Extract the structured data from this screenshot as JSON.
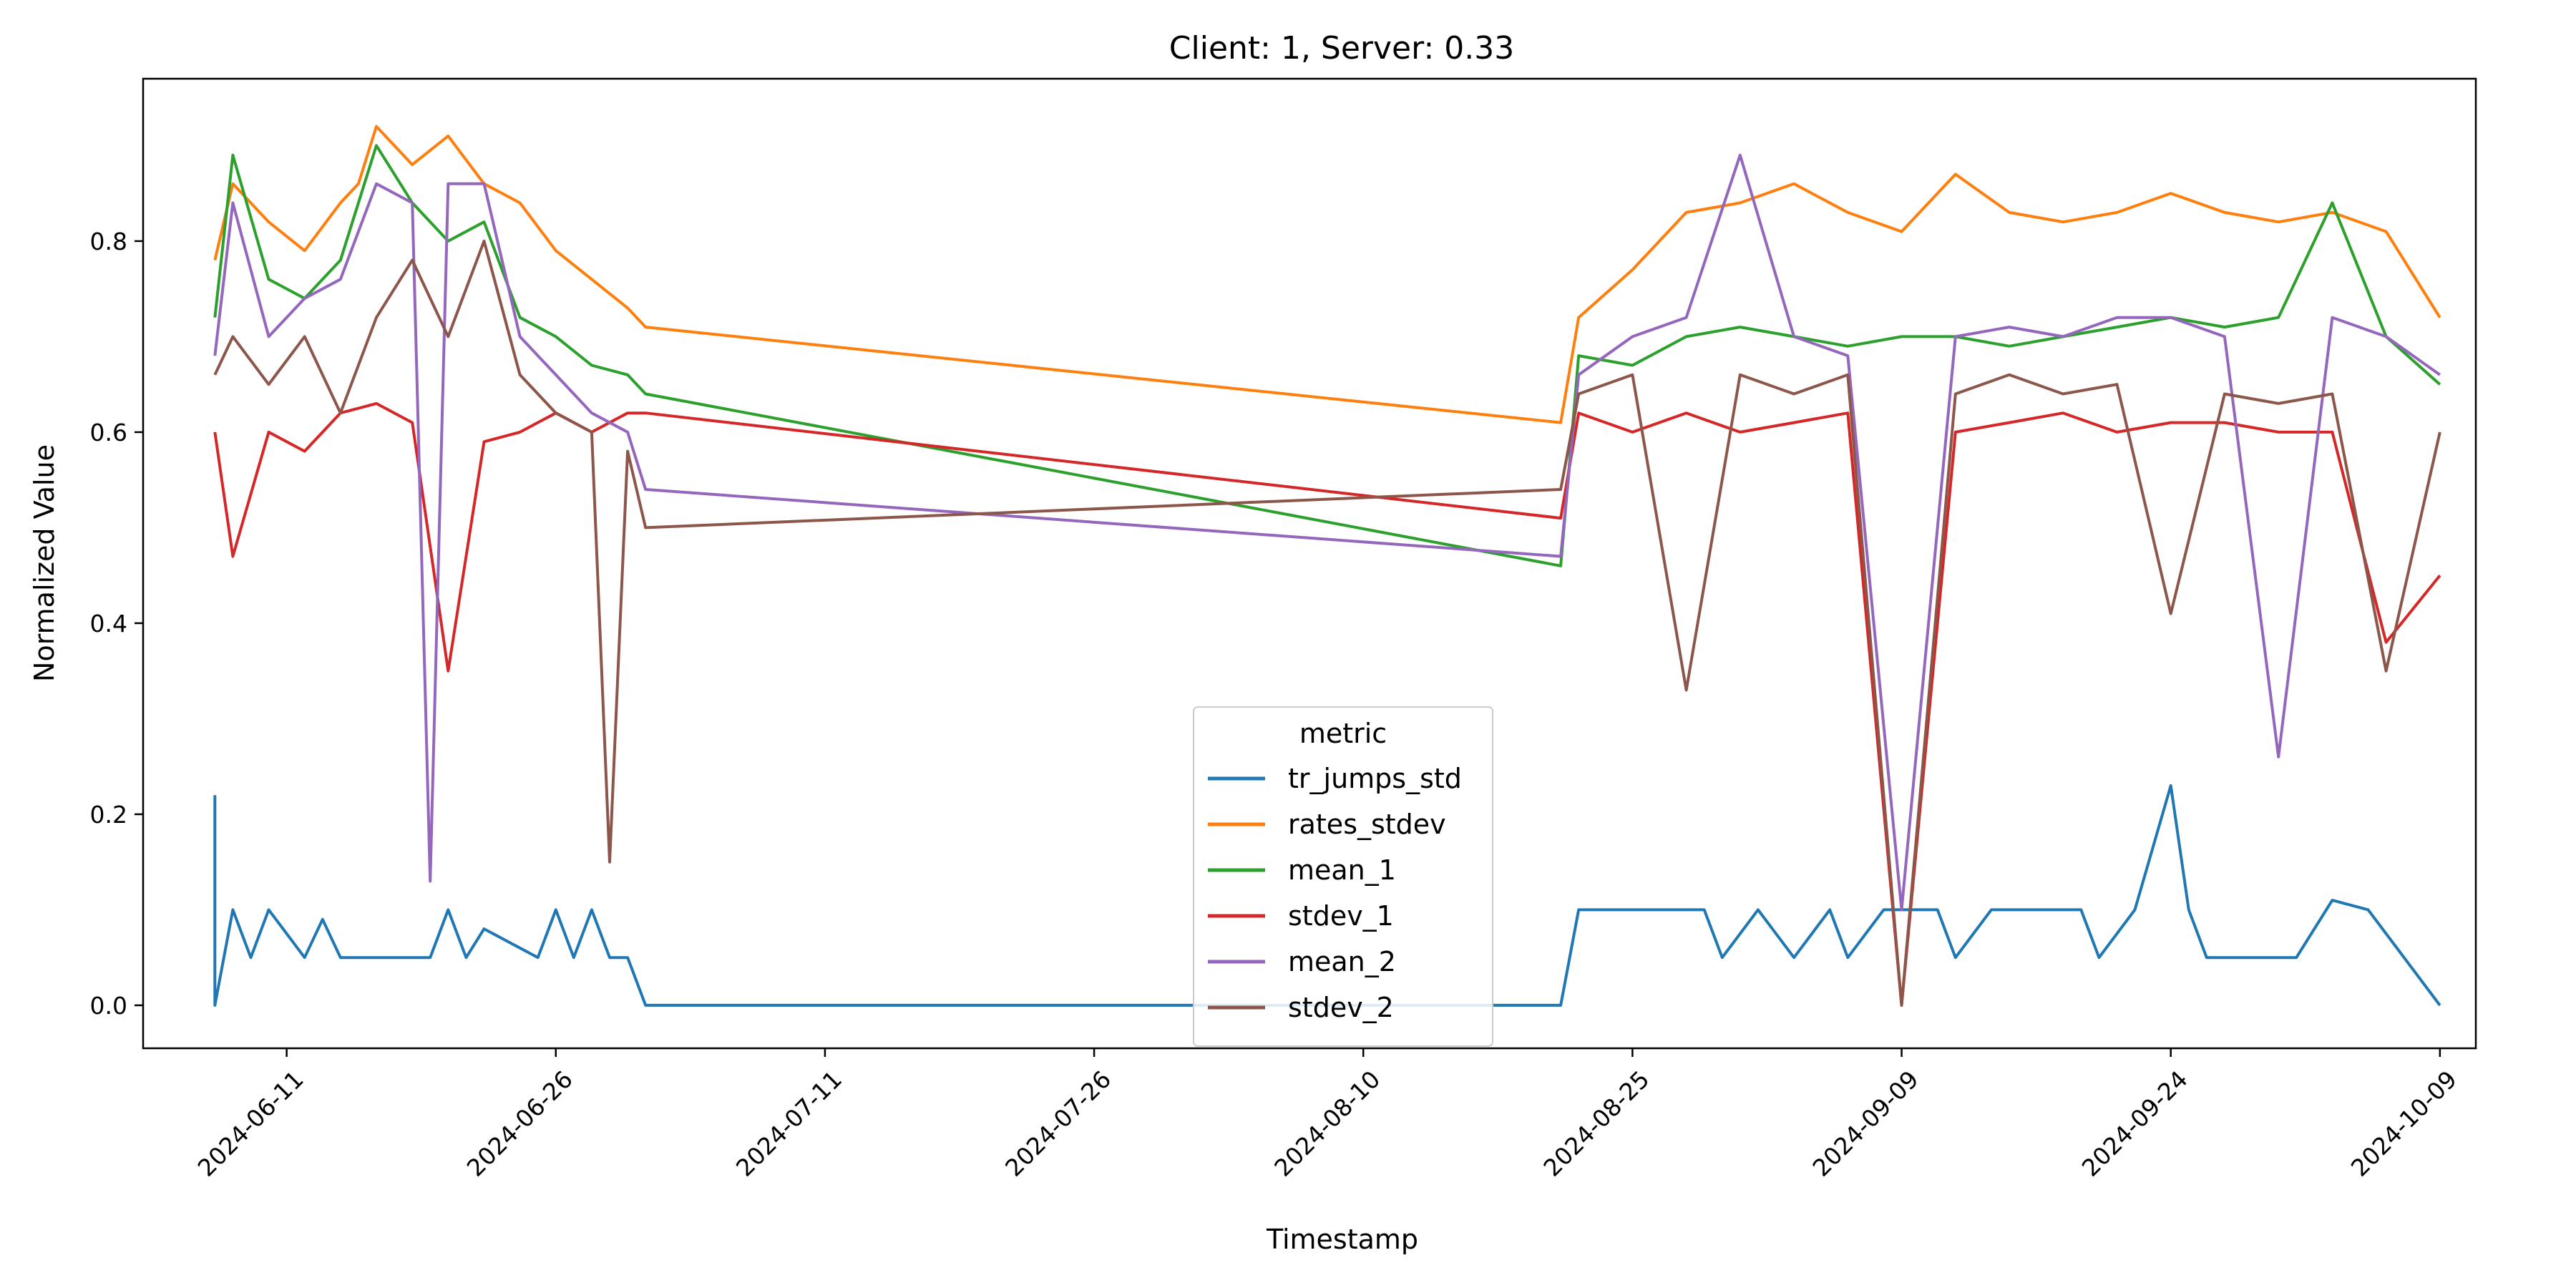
{
  "chart_data": {
    "type": "line",
    "title": "Client: 1, Server: 0.33",
    "xlabel": "Timestamp",
    "ylabel": "Normalized Value",
    "xlim": [
      "2024-06-03",
      "2024-10-11"
    ],
    "ylim": [
      -0.045,
      0.97
    ],
    "x_ticks": [
      "2024-06-11",
      "2024-06-26",
      "2024-07-11",
      "2024-07-26",
      "2024-08-10",
      "2024-08-25",
      "2024-09-09",
      "2024-09-24",
      "2024-10-09"
    ],
    "y_ticks": [
      "0.0",
      "0.2",
      "0.4",
      "0.6",
      "0.8"
    ],
    "grid": false,
    "legend": {
      "title": "metric",
      "placement": "lower-center"
    },
    "series": [
      {
        "name": "tr_jumps_std",
        "color": "#1f77b4",
        "x": [
          "2024-06-07",
          "2024-06-07",
          "2024-06-08",
          "2024-06-09",
          "2024-06-10",
          "2024-06-12",
          "2024-06-13",
          "2024-06-14",
          "2024-06-19",
          "2024-06-20",
          "2024-06-21",
          "2024-06-22",
          "2024-06-25",
          "2024-06-26",
          "2024-06-27",
          "2024-06-28",
          "2024-06-29",
          "2024-06-30",
          "2024-07-01",
          "2024-08-21",
          "2024-08-22",
          "2024-08-28",
          "2024-08-29",
          "2024-08-30",
          "2024-09-01",
          "2024-09-03",
          "2024-09-05",
          "2024-09-06",
          "2024-09-08",
          "2024-09-11",
          "2024-09-12",
          "2024-09-14",
          "2024-09-17",
          "2024-09-19",
          "2024-09-20",
          "2024-09-22",
          "2024-09-24",
          "2024-09-25",
          "2024-09-26",
          "2024-09-28",
          "2024-10-01",
          "2024-10-03",
          "2024-10-05",
          "2024-10-07",
          "2024-10-09"
        ],
        "values": [
          0.22,
          0.0,
          0.1,
          0.05,
          0.1,
          0.05,
          0.09,
          0.05,
          0.05,
          0.1,
          0.05,
          0.08,
          0.05,
          0.1,
          0.05,
          0.1,
          0.05,
          0.05,
          0.0,
          0.0,
          0.1,
          0.1,
          0.1,
          0.05,
          0.1,
          0.05,
          0.1,
          0.05,
          0.1,
          0.1,
          0.05,
          0.1,
          0.1,
          0.1,
          0.05,
          0.1,
          0.23,
          0.1,
          0.05,
          0.05,
          0.05,
          0.11,
          0.1,
          0.05,
          0.0
        ]
      },
      {
        "name": "rates_stdev",
        "color": "#ff7f0e",
        "x": [
          "2024-06-07",
          "2024-06-08",
          "2024-06-10",
          "2024-06-12",
          "2024-06-14",
          "2024-06-15",
          "2024-06-16",
          "2024-06-18",
          "2024-06-20",
          "2024-06-22",
          "2024-06-24",
          "2024-06-26",
          "2024-06-28",
          "2024-06-30",
          "2024-07-01",
          "2024-08-21",
          "2024-08-22",
          "2024-08-25",
          "2024-08-28",
          "2024-08-31",
          "2024-09-03",
          "2024-09-06",
          "2024-09-09",
          "2024-09-12",
          "2024-09-15",
          "2024-09-18",
          "2024-09-21",
          "2024-09-24",
          "2024-09-27",
          "2024-09-30",
          "2024-10-03",
          "2024-10-06",
          "2024-10-09"
        ],
        "values": [
          0.78,
          0.86,
          0.82,
          0.79,
          0.84,
          0.86,
          0.92,
          0.88,
          0.91,
          0.86,
          0.84,
          0.79,
          0.76,
          0.73,
          0.71,
          0.61,
          0.72,
          0.77,
          0.83,
          0.84,
          0.86,
          0.83,
          0.81,
          0.87,
          0.83,
          0.82,
          0.83,
          0.85,
          0.83,
          0.82,
          0.83,
          0.81,
          0.72
        ]
      },
      {
        "name": "mean_1",
        "color": "#2ca02c",
        "x": [
          "2024-06-07",
          "2024-06-08",
          "2024-06-10",
          "2024-06-12",
          "2024-06-14",
          "2024-06-16",
          "2024-06-18",
          "2024-06-20",
          "2024-06-22",
          "2024-06-24",
          "2024-06-26",
          "2024-06-28",
          "2024-06-30",
          "2024-07-01",
          "2024-08-21",
          "2024-08-22",
          "2024-08-25",
          "2024-08-28",
          "2024-08-31",
          "2024-09-03",
          "2024-09-06",
          "2024-09-09",
          "2024-09-12",
          "2024-09-15",
          "2024-09-18",
          "2024-09-21",
          "2024-09-24",
          "2024-09-27",
          "2024-09-30",
          "2024-10-03",
          "2024-10-06",
          "2024-10-09"
        ],
        "values": [
          0.72,
          0.89,
          0.76,
          0.74,
          0.78,
          0.9,
          0.84,
          0.8,
          0.82,
          0.72,
          0.7,
          0.67,
          0.66,
          0.64,
          0.46,
          0.68,
          0.67,
          0.7,
          0.71,
          0.7,
          0.69,
          0.7,
          0.7,
          0.69,
          0.7,
          0.71,
          0.72,
          0.71,
          0.72,
          0.84,
          0.7,
          0.65
        ]
      },
      {
        "name": "stdev_1",
        "color": "#d62728",
        "x": [
          "2024-06-07",
          "2024-06-08",
          "2024-06-10",
          "2024-06-12",
          "2024-06-14",
          "2024-06-16",
          "2024-06-18",
          "2024-06-20",
          "2024-06-22",
          "2024-06-24",
          "2024-06-26",
          "2024-06-28",
          "2024-06-30",
          "2024-07-01",
          "2024-08-21",
          "2024-08-22",
          "2024-08-25",
          "2024-08-28",
          "2024-08-31",
          "2024-09-03",
          "2024-09-06",
          "2024-09-09",
          "2024-09-12",
          "2024-09-15",
          "2024-09-18",
          "2024-09-21",
          "2024-09-24",
          "2024-09-27",
          "2024-09-30",
          "2024-10-03",
          "2024-10-06",
          "2024-10-09"
        ],
        "values": [
          0.6,
          0.47,
          0.6,
          0.58,
          0.62,
          0.63,
          0.61,
          0.35,
          0.59,
          0.6,
          0.62,
          0.6,
          0.62,
          0.62,
          0.51,
          0.62,
          0.6,
          0.62,
          0.6,
          0.61,
          0.62,
          0.0,
          0.6,
          0.61,
          0.62,
          0.6,
          0.61,
          0.61,
          0.6,
          0.6,
          0.38,
          0.45
        ]
      },
      {
        "name": "mean_2",
        "color": "#9467bd",
        "x": [
          "2024-06-07",
          "2024-06-08",
          "2024-06-10",
          "2024-06-12",
          "2024-06-14",
          "2024-06-16",
          "2024-06-18",
          "2024-06-19",
          "2024-06-20",
          "2024-06-22",
          "2024-06-24",
          "2024-06-26",
          "2024-06-28",
          "2024-06-30",
          "2024-07-01",
          "2024-08-21",
          "2024-08-22",
          "2024-08-25",
          "2024-08-28",
          "2024-08-31",
          "2024-09-03",
          "2024-09-06",
          "2024-09-09",
          "2024-09-12",
          "2024-09-15",
          "2024-09-18",
          "2024-09-21",
          "2024-09-24",
          "2024-09-27",
          "2024-09-30",
          "2024-10-03",
          "2024-10-06",
          "2024-10-09"
        ],
        "values": [
          0.68,
          0.84,
          0.7,
          0.74,
          0.76,
          0.86,
          0.84,
          0.13,
          0.86,
          0.86,
          0.7,
          0.66,
          0.62,
          0.6,
          0.54,
          0.47,
          0.66,
          0.7,
          0.72,
          0.89,
          0.7,
          0.68,
          0.1,
          0.7,
          0.71,
          0.7,
          0.72,
          0.72,
          0.7,
          0.26,
          0.72,
          0.7,
          0.66
        ]
      },
      {
        "name": "stdev_2",
        "color": "#8c564b",
        "x": [
          "2024-06-07",
          "2024-06-08",
          "2024-06-10",
          "2024-06-12",
          "2024-06-14",
          "2024-06-16",
          "2024-06-18",
          "2024-06-20",
          "2024-06-22",
          "2024-06-24",
          "2024-06-26",
          "2024-06-28",
          "2024-06-29",
          "2024-06-30",
          "2024-07-01",
          "2024-08-21",
          "2024-08-22",
          "2024-08-25",
          "2024-08-28",
          "2024-08-31",
          "2024-09-03",
          "2024-09-06",
          "2024-09-09",
          "2024-09-12",
          "2024-09-15",
          "2024-09-18",
          "2024-09-21",
          "2024-09-24",
          "2024-09-27",
          "2024-09-30",
          "2024-10-03",
          "2024-10-06",
          "2024-10-09"
        ],
        "values": [
          0.66,
          0.7,
          0.65,
          0.7,
          0.62,
          0.72,
          0.78,
          0.7,
          0.8,
          0.66,
          0.62,
          0.6,
          0.15,
          0.58,
          0.5,
          0.54,
          0.64,
          0.66,
          0.33,
          0.66,
          0.64,
          0.66,
          0.0,
          0.64,
          0.66,
          0.64,
          0.65,
          0.41,
          0.64,
          0.63,
          0.64,
          0.35,
          0.6
        ]
      }
    ]
  }
}
